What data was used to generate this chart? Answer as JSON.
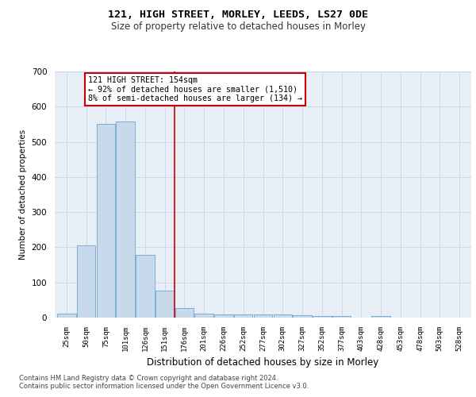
{
  "title1": "121, HIGH STREET, MORLEY, LEEDS, LS27 0DE",
  "title2": "Size of property relative to detached houses in Morley",
  "xlabel": "Distribution of detached houses by size in Morley",
  "ylabel": "Number of detached properties",
  "categories": [
    "25sqm",
    "50sqm",
    "75sqm",
    "101sqm",
    "126sqm",
    "151sqm",
    "176sqm",
    "201sqm",
    "226sqm",
    "252sqm",
    "277sqm",
    "302sqm",
    "327sqm",
    "352sqm",
    "377sqm",
    "403sqm",
    "428sqm",
    "453sqm",
    "478sqm",
    "503sqm",
    "528sqm"
  ],
  "values": [
    12,
    205,
    550,
    558,
    178,
    77,
    28,
    12,
    10,
    8,
    10,
    8,
    6,
    5,
    5,
    0,
    5,
    0,
    0,
    0,
    0
  ],
  "bar_color": "#c9d9ec",
  "bar_edge_color": "#7bafd4",
  "grid_color": "#d0d8e8",
  "background_color": "#e8eef5",
  "vline_x": 5.5,
  "vline_color": "#cc0000",
  "annotation_line1": "121 HIGH STREET: 154sqm",
  "annotation_line2": "← 92% of detached houses are smaller (1,510)",
  "annotation_line3": "8% of semi-detached houses are larger (134) →",
  "annotation_box_color": "#cc0000",
  "ylim": [
    0,
    700
  ],
  "yticks": [
    0,
    100,
    200,
    300,
    400,
    500,
    600,
    700
  ],
  "footer1": "Contains HM Land Registry data © Crown copyright and database right 2024.",
  "footer2": "Contains public sector information licensed under the Open Government Licence v3.0.",
  "title1_fontsize": 9.5,
  "title2_fontsize": 8.5
}
